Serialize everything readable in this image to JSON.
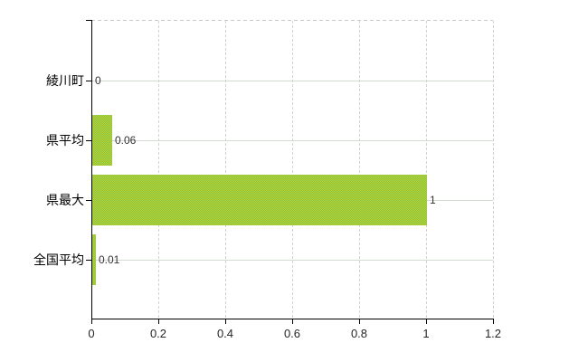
{
  "chart_data": {
    "type": "bar",
    "orientation": "horizontal",
    "title": "",
    "xlabel": "",
    "ylabel": "",
    "legend": "none",
    "grid": "on",
    "categories": [
      "綾川町",
      "県平均",
      "県最大",
      "全国平均"
    ],
    "values": [
      0,
      0.06,
      1,
      0.01
    ],
    "value_labels": [
      "0",
      "0.06",
      "1",
      "0.01"
    ],
    "x_ticks": [
      0,
      0.2,
      0.4,
      0.6,
      0.8,
      1,
      1.2
    ],
    "x_tick_labels": [
      "0",
      "0.2",
      "0.4",
      "0.6",
      "0.8",
      "1",
      "1.2"
    ],
    "xlim": [
      0,
      1.2
    ],
    "colors": {
      "bar_primary": "#a1ca38",
      "bar_dither_light": "#b0d23a",
      "bar_dither_dark": "#92c33a",
      "axis": "#000000",
      "gridline_horizontal": "#d4dbd2",
      "gridline_vertical": "#cfd4cc",
      "plot_top_border": "#c9c9c9",
      "category_label": "#000000",
      "tick_label": "#262626",
      "value_label": "#333333",
      "background": "#ffffff"
    }
  }
}
